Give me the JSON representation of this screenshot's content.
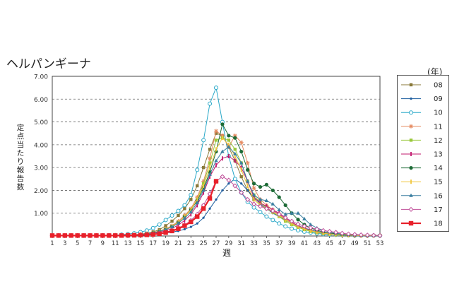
{
  "page": {
    "title": "ヘルパンギーナ",
    "legend_unit": "(年)"
  },
  "chart_data": {
    "type": "line",
    "title": "ヘルパンギーナ",
    "xlabel": "週",
    "ylabel": "定点当たり報告数",
    "xlim": [
      1,
      53
    ],
    "ylim": [
      0,
      7
    ],
    "x_ticks": [
      1,
      3,
      5,
      7,
      9,
      11,
      13,
      15,
      17,
      19,
      21,
      23,
      25,
      27,
      29,
      31,
      33,
      35,
      37,
      39,
      41,
      43,
      45,
      47,
      49,
      51,
      53
    ],
    "y_ticks": [
      "7.00",
      "6.00",
      "5.00",
      "4.00",
      "3.00",
      "2.00",
      "1.00"
    ],
    "grid": "horizontal dashed",
    "legend_position": "right",
    "series": [
      {
        "name": "08",
        "color": "#8a7a3a",
        "marker": "square",
        "values": [
          0.02,
          0.02,
          0.02,
          0.02,
          0.02,
          0.02,
          0.02,
          0.02,
          0.02,
          0.02,
          0.03,
          0.03,
          0.04,
          0.06,
          0.08,
          0.12,
          0.18,
          0.28,
          0.45,
          0.65,
          0.9,
          1.2,
          1.6,
          2.2,
          3.0,
          3.8,
          4.5,
          4.4,
          3.9,
          3.3,
          2.6,
          2.0,
          1.6,
          1.35,
          1.2,
          1.05,
          0.9,
          0.75,
          0.55,
          0.4,
          0.3,
          0.22,
          0.16,
          0.12,
          0.09,
          0.07,
          0.05,
          0.04,
          0.03,
          0.03,
          0.02,
          0.02,
          0.02
        ]
      },
      {
        "name": "09",
        "color": "#1f5fa0",
        "marker": "dot",
        "values": [
          0.02,
          0.02,
          0.02,
          0.02,
          0.02,
          0.02,
          0.02,
          0.02,
          0.02,
          0.02,
          0.02,
          0.03,
          0.03,
          0.04,
          0.05,
          0.06,
          0.08,
          0.1,
          0.13,
          0.17,
          0.22,
          0.3,
          0.4,
          0.55,
          0.8,
          1.2,
          1.6,
          2.0,
          2.3,
          2.5,
          2.3,
          2.0,
          1.7,
          1.4,
          1.2,
          1.0,
          0.85,
          0.7,
          0.55,
          0.45,
          0.35,
          0.27,
          0.2,
          0.15,
          0.11,
          0.08,
          0.06,
          0.05,
          0.04,
          0.03,
          0.02,
          0.02,
          0.02
        ]
      },
      {
        "name": "10",
        "color": "#29a8c8",
        "marker": "circle-open",
        "values": [
          0.02,
          0.02,
          0.02,
          0.02,
          0.02,
          0.02,
          0.02,
          0.02,
          0.03,
          0.03,
          0.04,
          0.06,
          0.08,
          0.12,
          0.17,
          0.24,
          0.35,
          0.5,
          0.7,
          0.9,
          1.1,
          1.35,
          1.8,
          2.9,
          4.2,
          5.8,
          6.5,
          5.0,
          3.5,
          2.5,
          1.9,
          1.5,
          1.25,
          1.05,
          0.85,
          0.7,
          0.55,
          0.42,
          0.32,
          0.25,
          0.19,
          0.15,
          0.11,
          0.08,
          0.06,
          0.05,
          0.04,
          0.03,
          0.02,
          0.02,
          0.02,
          0.02,
          0.02
        ]
      },
      {
        "name": "11",
        "color": "#e58a60",
        "marker": "star",
        "values": [
          0.02,
          0.02,
          0.02,
          0.02,
          0.02,
          0.02,
          0.02,
          0.02,
          0.02,
          0.02,
          0.03,
          0.03,
          0.04,
          0.05,
          0.07,
          0.1,
          0.15,
          0.22,
          0.32,
          0.45,
          0.65,
          0.9,
          1.2,
          1.7,
          2.4,
          3.4,
          4.6,
          4.4,
          3.9,
          4.4,
          4.1,
          3.2,
          2.1,
          1.6,
          1.35,
          1.15,
          0.95,
          0.75,
          0.55,
          0.42,
          0.32,
          0.24,
          0.18,
          0.13,
          0.1,
          0.07,
          0.05,
          0.04,
          0.03,
          0.02,
          0.02,
          0.02,
          0.02
        ]
      },
      {
        "name": "12",
        "color": "#9ac83c",
        "marker": "square",
        "values": [
          0.02,
          0.02,
          0.02,
          0.02,
          0.02,
          0.02,
          0.02,
          0.02,
          0.02,
          0.02,
          0.03,
          0.03,
          0.04,
          0.05,
          0.07,
          0.1,
          0.14,
          0.2,
          0.3,
          0.42,
          0.6,
          0.85,
          1.15,
          1.6,
          2.3,
          3.2,
          4.2,
          4.3,
          4.2,
          3.8,
          3.2,
          2.4,
          1.8,
          1.45,
          1.25,
          1.05,
          0.85,
          0.65,
          0.5,
          0.38,
          0.28,
          0.2,
          0.15,
          0.11,
          0.08,
          0.06,
          0.05,
          0.04,
          0.03,
          0.02,
          0.02,
          0.02,
          0.02
        ]
      },
      {
        "name": "13",
        "color": "#c2186e",
        "marker": "bar",
        "values": [
          0.02,
          0.02,
          0.02,
          0.02,
          0.02,
          0.02,
          0.02,
          0.02,
          0.02,
          0.02,
          0.02,
          0.03,
          0.03,
          0.04,
          0.06,
          0.08,
          0.11,
          0.16,
          0.23,
          0.33,
          0.48,
          0.68,
          0.95,
          1.35,
          1.9,
          2.6,
          3.1,
          3.4,
          3.5,
          3.3,
          3.0,
          2.4,
          1.7,
          1.45,
          1.3,
          1.15,
          1.0,
          0.8,
          0.6,
          0.45,
          0.33,
          0.24,
          0.17,
          0.12,
          0.09,
          0.07,
          0.05,
          0.04,
          0.03,
          0.02,
          0.02,
          0.02,
          0.02
        ]
      },
      {
        "name": "14",
        "color": "#1d6b36",
        "marker": "circle",
        "values": [
          0.02,
          0.02,
          0.02,
          0.02,
          0.02,
          0.02,
          0.02,
          0.02,
          0.02,
          0.02,
          0.03,
          0.03,
          0.04,
          0.05,
          0.07,
          0.1,
          0.14,
          0.2,
          0.29,
          0.42,
          0.6,
          0.85,
          1.15,
          1.55,
          2.1,
          2.8,
          3.7,
          4.9,
          4.4,
          4.3,
          3.7,
          2.9,
          2.3,
          2.15,
          2.25,
          2.0,
          1.7,
          1.35,
          1.0,
          0.72,
          0.5,
          0.35,
          0.25,
          0.18,
          0.13,
          0.1,
          0.07,
          0.05,
          0.04,
          0.03,
          0.02,
          0.02,
          0.02
        ]
      },
      {
        "name": "15",
        "color": "#f0c63c",
        "marker": "bar",
        "values": [
          0.02,
          0.02,
          0.02,
          0.02,
          0.02,
          0.02,
          0.02,
          0.02,
          0.02,
          0.02,
          0.03,
          0.03,
          0.04,
          0.05,
          0.07,
          0.1,
          0.14,
          0.2,
          0.3,
          0.42,
          0.6,
          0.85,
          1.15,
          1.6,
          2.2,
          3.0,
          3.8,
          4.3,
          4.0,
          3.5,
          2.9,
          2.2,
          1.6,
          1.35,
          1.2,
          1.05,
          0.9,
          0.72,
          0.55,
          0.42,
          0.31,
          0.23,
          0.17,
          0.12,
          0.09,
          0.07,
          0.05,
          0.04,
          0.03,
          0.02,
          0.02,
          0.02,
          0.02
        ]
      },
      {
        "name": "16",
        "color": "#3a7fa0",
        "marker": "triangle",
        "values": [
          0.02,
          0.02,
          0.02,
          0.02,
          0.02,
          0.02,
          0.02,
          0.02,
          0.02,
          0.02,
          0.03,
          0.03,
          0.04,
          0.05,
          0.07,
          0.1,
          0.14,
          0.2,
          0.28,
          0.4,
          0.56,
          0.78,
          1.05,
          1.45,
          2.0,
          2.7,
          3.3,
          3.7,
          3.9,
          3.6,
          3.2,
          2.4,
          1.8,
          1.6,
          1.55,
          1.4,
          1.15,
          0.95,
          1.0,
          1.0,
          0.75,
          0.5,
          0.35,
          0.25,
          0.18,
          0.13,
          0.1,
          0.08,
          0.06,
          0.04,
          0.03,
          0.03,
          0.02
        ]
      },
      {
        "name": "17",
        "color": "#c0509a",
        "marker": "diamond-open",
        "values": [
          0.02,
          0.02,
          0.02,
          0.02,
          0.02,
          0.02,
          0.02,
          0.02,
          0.02,
          0.02,
          0.02,
          0.03,
          0.03,
          0.04,
          0.05,
          0.07,
          0.09,
          0.12,
          0.17,
          0.24,
          0.34,
          0.48,
          0.68,
          0.95,
          1.35,
          1.85,
          2.4,
          2.6,
          2.45,
          2.2,
          1.9,
          1.6,
          1.4,
          1.3,
          1.2,
          1.1,
          0.95,
          0.8,
          0.65,
          0.52,
          0.43,
          0.36,
          0.3,
          0.24,
          0.2,
          0.16,
          0.12,
          0.09,
          0.07,
          0.05,
          0.04,
          0.03,
          0.02
        ]
      },
      {
        "name": "18",
        "color": "#e8202a",
        "marker": "square-bold",
        "values": [
          0.02,
          0.02,
          0.02,
          0.02,
          0.02,
          0.02,
          0.02,
          0.02,
          0.02,
          0.02,
          0.02,
          0.02,
          0.03,
          0.03,
          0.04,
          0.05,
          0.07,
          0.1,
          0.15,
          0.22,
          0.32,
          0.45,
          0.62,
          0.85,
          1.2,
          1.65,
          2.4
        ]
      }
    ]
  }
}
